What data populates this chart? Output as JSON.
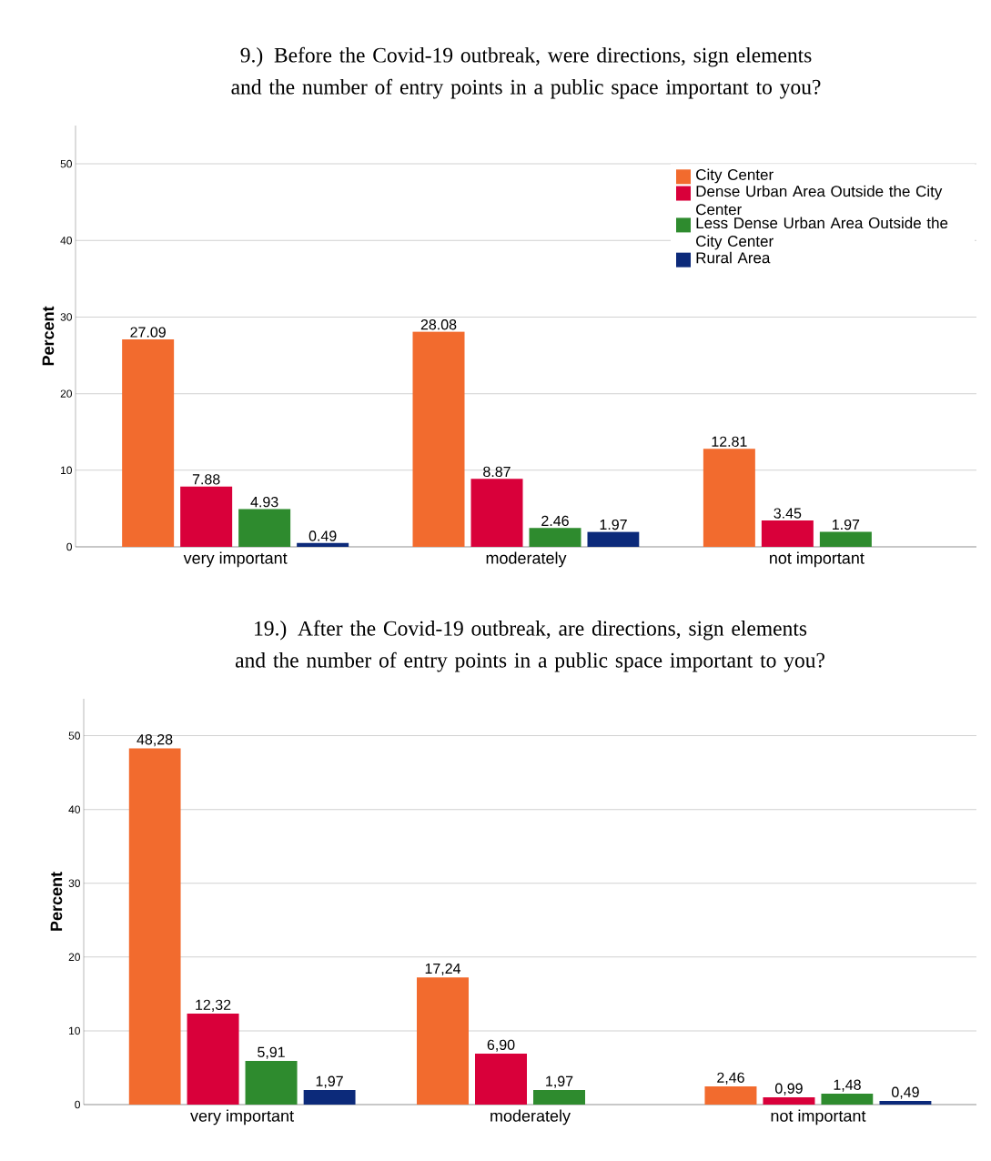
{
  "chart_data": [
    {
      "type": "bar",
      "title": "9.) Before the Covid-19 outbreak, were directions, sign elements and the number of entry points in a public space important to you?",
      "ylabel": "Percent",
      "categories": [
        "very important",
        "moderately",
        "not important"
      ],
      "series": [
        {
          "name": "City Center",
          "color": "#f26b2e",
          "values": [
            27.09,
            28.08,
            12.81
          ]
        },
        {
          "name": "Dense Urban Area Outside the City Center",
          "color": "#d9003a",
          "values": [
            7.88,
            8.87,
            3.45
          ]
        },
        {
          "name": "Less Dense Urban Area Outside the City Center",
          "color": "#2e8b2e",
          "values": [
            4.93,
            2.46,
            1.97
          ]
        },
        {
          "name": "Rural Area",
          "color": "#0c2a7a",
          "values": [
            0.49,
            1.97,
            null
          ]
        }
      ],
      "ylim": [
        0,
        55
      ],
      "yticks": [
        0,
        10,
        20,
        30,
        40,
        50
      ],
      "grid": "y",
      "legend": "top right",
      "data_labels": true
    },
    {
      "type": "bar",
      "title": "19.) After the Covid-19 outbreak, are directions, sign elements and the number of entry points in a public space important to you?",
      "ylabel": "Percent",
      "categories": [
        "very important",
        "moderately",
        "not important"
      ],
      "series": [
        {
          "color": "#f26b2e",
          "values": [
            48.28,
            17.24,
            2.46
          ],
          "value_labels": [
            "48,28",
            "17,24",
            "2,46"
          ]
        },
        {
          "color": "#d9003a",
          "values": [
            12.32,
            6.9,
            0.99
          ],
          "value_labels": [
            "12,32",
            "6,90",
            "0,99"
          ]
        },
        {
          "color": "#2e8b2e",
          "values": [
            5.91,
            1.97,
            1.48
          ],
          "value_labels": [
            "5,91",
            "1,97",
            "1,48"
          ]
        },
        {
          "color": "#0c2a7a",
          "values": [
            1.97,
            null,
            0.49
          ],
          "value_labels": [
            "1,97",
            null,
            "0,49"
          ]
        }
      ],
      "ylim": [
        0,
        55
      ],
      "yticks": [
        0,
        10,
        20,
        30,
        40,
        50
      ],
      "grid": "y"
    }
  ]
}
